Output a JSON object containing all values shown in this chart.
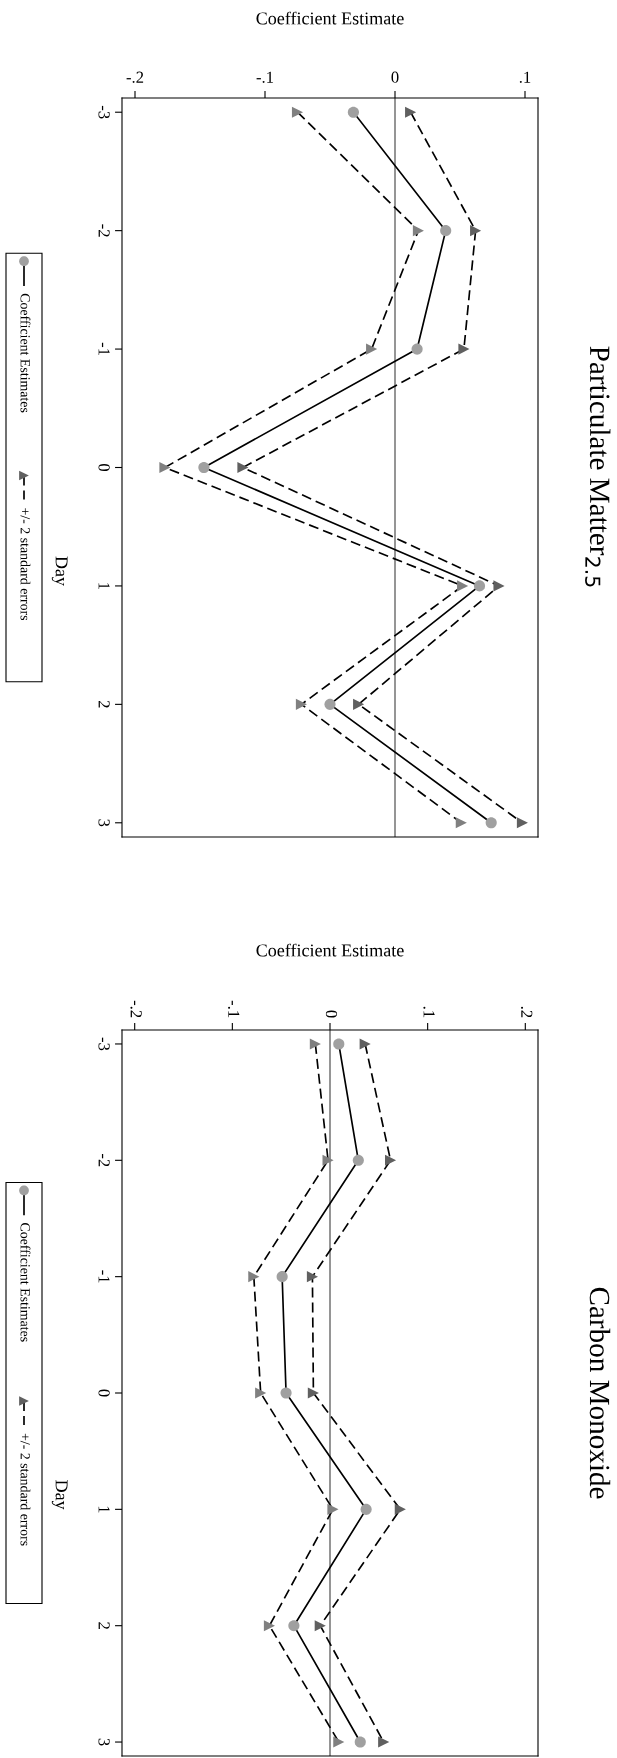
{
  "chart_data": [
    {
      "type": "line",
      "annotations": [
        "Particulate Matter$_{2.5}$"
      ],
      "xlabel": "Coefficient Estimate",
      "ylabel": "Day",
      "series": [
        {
          "name": "Coefficient Estimates",
          "color": "#a0a0a0",
          "marker": "circle",
          "line_style": "solid",
          "x": [
            -0.032,
            0.039,
            0.017,
            -0.147,
            0.065,
            -0.05,
            0.074
          ],
          "values": [
            -3,
            -2,
            -1,
            0,
            1,
            2,
            3
          ]
        },
        {
          "name": "+/- 2 standard errors",
          "color": "#606060",
          "marker": "triangle",
          "line_style": "dashed",
          "x": [
            0.012,
            0.062,
            0.053,
            -0.117,
            0.08,
            -0.028,
            0.098
          ],
          "values": [
            -3,
            -2,
            -1,
            0,
            1,
            2,
            3
          ]
        },
        {
          "color": "#808080",
          "marker": "triangle",
          "line_style": "dashed",
          "x": [
            -0.075,
            0.018,
            -0.018,
            -0.177,
            0.052,
            -0.072,
            0.051
          ],
          "values": [
            -3,
            -2,
            -1,
            0,
            1,
            2,
            3
          ]
        }
      ],
      "ylim": [
        3.12,
        -3.12
      ],
      "yticks": [
        -3,
        -2,
        -1,
        0,
        1,
        2,
        3
      ],
      "xlim": [
        -0.21,
        0.11
      ],
      "xticks": [
        {
          "value": -0.2,
          "label": "-.2"
        },
        {
          "value": -0.1,
          "label": "-.1"
        },
        0,
        {
          "value": 0.1,
          "label": ".1"
        }
      ],
      "ref_lines": [
        {
          "axis": "x",
          "value": 0,
          "color": "#808080"
        }
      ],
      "legend": "left"
    },
    {
      "type": "line",
      "annotations": [
        "Carbon Monoxide"
      ],
      "xlabel": "Coefficient Estimate",
      "ylabel": "Day",
      "series": [
        {
          "name": "Coefficient Estimates",
          "color": "#a0a0a0",
          "marker": "circle",
          "line_style": "solid",
          "x": [
            0.009,
            0.029,
            -0.049,
            -0.045,
            0.037,
            -0.037,
            0.031
          ],
          "values": [
            -3,
            -2,
            -1,
            0,
            1,
            2,
            3
          ]
        },
        {
          "name": "+/- 2 standard errors",
          "color": "#606060",
          "marker": "triangle",
          "line_style": "dashed",
          "x": [
            0.036,
            0.062,
            -0.018,
            -0.017,
            0.072,
            -0.01,
            0.055
          ],
          "values": [
            -3,
            -2,
            -1,
            0,
            1,
            2,
            3
          ]
        },
        {
          "color": "#808080",
          "marker": "triangle",
          "line_style": "dashed",
          "x": [
            -0.015,
            -0.002,
            -0.078,
            -0.071,
            0.003,
            -0.062,
            0.009
          ],
          "values": [
            -3,
            -2,
            -1,
            0,
            1,
            2,
            3
          ]
        }
      ],
      "ylim": [
        3.12,
        -3.12
      ],
      "yticks": [
        -3,
        -2,
        -1,
        0,
        1,
        2,
        3
      ],
      "xlim": [
        -0.213,
        0.213
      ],
      "xticks": [
        {
          "value": -0.2,
          "label": "-.2"
        },
        {
          "value": -0.1,
          "label": "-.1"
        },
        0,
        {
          "value": 0.1,
          "label": ".1"
        },
        {
          "value": 0.2,
          "label": ".2"
        }
      ],
      "ref_lines": [
        {
          "axis": "x",
          "value": 0,
          "color": "#808080"
        }
      ],
      "legend": "left"
    }
  ]
}
